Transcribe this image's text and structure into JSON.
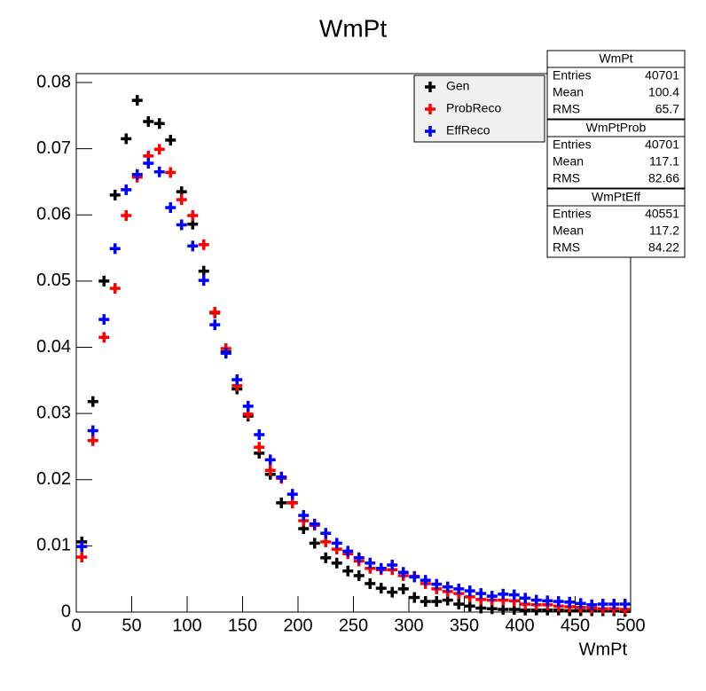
{
  "chart_data": {
    "type": "scatter",
    "title": "WmPt",
    "x_label": "WmPt",
    "xlim": [
      0,
      500
    ],
    "xticks": [
      0,
      50,
      100,
      150,
      200,
      250,
      300,
      350,
      400,
      450,
      500
    ],
    "ylim": [
      0,
      0.08
    ],
    "yticks": [
      0,
      0.01,
      0.02,
      0.03,
      0.04,
      0.05,
      0.06,
      0.07,
      0.08
    ],
    "grid": false,
    "legend": "top-right",
    "x": [
      5,
      15,
      25,
      35,
      45,
      55,
      65,
      75,
      85,
      95,
      105,
      115,
      125,
      135,
      145,
      155,
      165,
      175,
      185,
      195,
      205,
      215,
      225,
      235,
      245,
      255,
      265,
      275,
      285,
      295,
      305,
      315,
      325,
      335,
      345,
      355,
      365,
      375,
      385,
      395,
      405,
      415,
      425,
      435,
      445,
      455,
      465,
      475,
      485,
      495
    ],
    "series": [
      {
        "name": "Gen",
        "color": "#000000",
        "values": [
          0.0106,
          0.0318,
          0.05,
          0.063,
          0.0715,
          0.0773,
          0.0741,
          0.0738,
          0.0713,
          0.0635,
          0.0586,
          0.0515,
          0.0452,
          0.0393,
          0.0337,
          0.0296,
          0.024,
          0.0208,
          0.0165,
          0.0165,
          0.0126,
          0.0104,
          0.0082,
          0.0074,
          0.0062,
          0.0055,
          0.0043,
          0.0036,
          0.003,
          0.0035,
          0.0022,
          0.0016,
          0.0016,
          0.0018,
          0.0012,
          0.0009,
          0.0006,
          0.0005,
          0.0004,
          0.0004,
          0.0003,
          0.0003,
          0.0003,
          0.0003,
          0.0002,
          0.0002,
          0.0002,
          0.0002,
          0.0002,
          0.0001
        ]
      },
      {
        "name": "ProbReco",
        "color": "#ff0000",
        "values": [
          0.0083,
          0.0259,
          0.0415,
          0.0489,
          0.0599,
          0.0657,
          0.0689,
          0.0699,
          0.0664,
          0.0623,
          0.0599,
          0.0555,
          0.0453,
          0.0398,
          0.0342,
          0.0299,
          0.0249,
          0.0214,
          0.0202,
          0.0165,
          0.0138,
          0.0131,
          0.0106,
          0.0095,
          0.0088,
          0.0077,
          0.0066,
          0.0064,
          0.0064,
          0.0055,
          0.0054,
          0.0043,
          0.0035,
          0.0031,
          0.0028,
          0.0023,
          0.0019,
          0.0018,
          0.0018,
          0.0017,
          0.0012,
          0.0011,
          0.0011,
          0.0009,
          0.0008,
          0.0007,
          0.0006,
          0.0005,
          0.0005,
          0.0004
        ]
      },
      {
        "name": "EffReco",
        "color": "#0000ff",
        "values": [
          0.0099,
          0.0274,
          0.0442,
          0.0549,
          0.0638,
          0.0661,
          0.0678,
          0.0665,
          0.0611,
          0.0585,
          0.0553,
          0.0501,
          0.0434,
          0.0391,
          0.0351,
          0.0311,
          0.0268,
          0.023,
          0.0204,
          0.0178,
          0.0146,
          0.0133,
          0.0119,
          0.0104,
          0.0092,
          0.0082,
          0.0074,
          0.0066,
          0.0071,
          0.006,
          0.0053,
          0.0048,
          0.0042,
          0.0038,
          0.0035,
          0.0032,
          0.0028,
          0.0024,
          0.0027,
          0.0026,
          0.0021,
          0.0018,
          0.0017,
          0.0016,
          0.0015,
          0.0013,
          0.0011,
          0.0012,
          0.0012,
          0.0012
        ]
      }
    ],
    "stats_boxes": [
      {
        "title": "WmPt",
        "rows": [
          {
            "label": "Entries",
            "value": 40701
          },
          {
            "label": "Mean",
            "value": 100.4
          },
          {
            "label": "RMS",
            "value": 65.7
          }
        ]
      },
      {
        "title": "WmPtProb",
        "rows": [
          {
            "label": "Entries",
            "value": 40701
          },
          {
            "label": "Mean",
            "value": 117.1
          },
          {
            "label": "RMS",
            "value": 82.66
          }
        ]
      },
      {
        "title": "WmPtEff",
        "rows": [
          {
            "label": "Entries",
            "value": 40551
          },
          {
            "label": "Mean",
            "value": 117.2
          },
          {
            "label": "RMS",
            "value": 84.22
          }
        ]
      }
    ]
  }
}
